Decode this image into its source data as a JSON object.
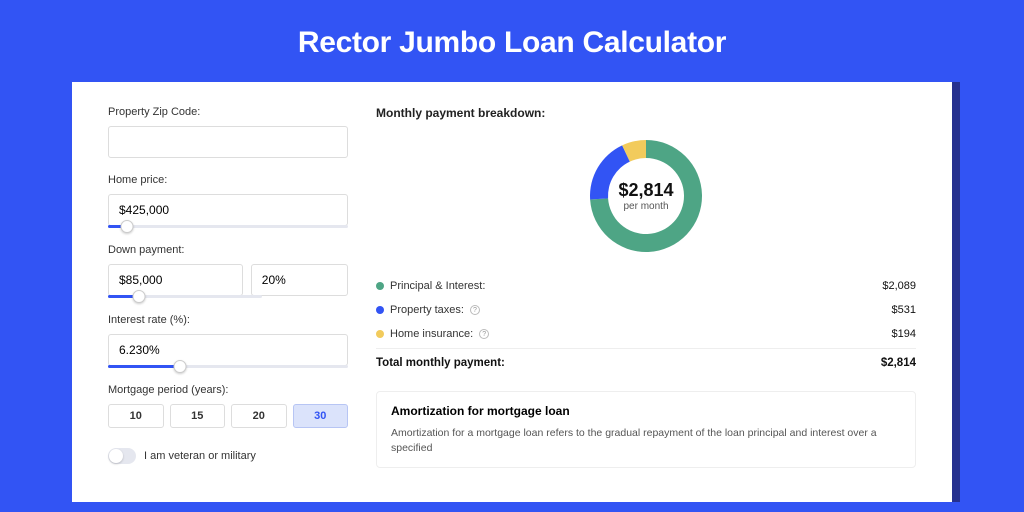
{
  "title": "Rector Jumbo Loan Calculator",
  "form": {
    "zip": {
      "label": "Property Zip Code:",
      "value": ""
    },
    "home_price": {
      "label": "Home price:",
      "value": "$425,000",
      "slider_pct": 8
    },
    "down_payment": {
      "label": "Down payment:",
      "amount": "$85,000",
      "pct": "20%",
      "slider_pct": 20
    },
    "interest": {
      "label": "Interest rate (%):",
      "value": "6.230%",
      "slider_pct": 30
    },
    "period": {
      "label": "Mortgage period (years):",
      "options": [
        "10",
        "15",
        "20",
        "30"
      ],
      "selected": "30"
    },
    "veteran": {
      "label": "I am veteran or military",
      "checked": false
    }
  },
  "breakdown": {
    "title": "Monthly payment breakdown:",
    "center_value": "$2,814",
    "center_sub": "per month",
    "donut": {
      "segments": [
        {
          "color": "#4ea585",
          "pct": 74
        },
        {
          "color": "#3254f4",
          "pct": 19
        },
        {
          "color": "#f2cb5c",
          "pct": 7
        }
      ],
      "thickness": 18,
      "radius": 56
    },
    "items": [
      {
        "label": "Principal & Interest:",
        "color": "#4ea585",
        "value": "$2,089",
        "info": false
      },
      {
        "label": "Property taxes:",
        "color": "#3254f4",
        "value": "$531",
        "info": true
      },
      {
        "label": "Home insurance:",
        "color": "#f2cb5c",
        "value": "$194",
        "info": true
      }
    ],
    "total_label": "Total monthly payment:",
    "total_value": "$2,814"
  },
  "amortization": {
    "title": "Amortization for mortgage loan",
    "body": "Amortization for a mortgage loan refers to the gradual repayment of the loan principal and interest over a specified"
  }
}
